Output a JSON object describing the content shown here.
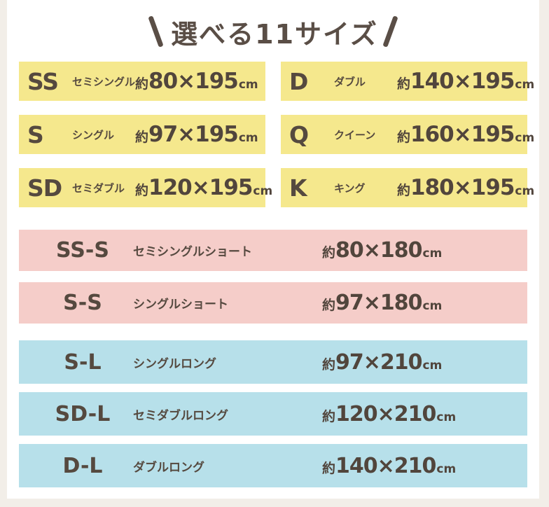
{
  "title": "選べる11サイズ",
  "colors": {
    "background": "#f2eee8",
    "panel": "#ffffff",
    "standard_row": "#f5e88d",
    "short_row": "#f5cdc9",
    "long_row": "#b7e0ea",
    "text": "#55493f"
  },
  "groups": {
    "standard": {
      "items": [
        {
          "code": "SS",
          "kana": "セミシングル",
          "prefix": "約",
          "size": "80×195",
          "unit": "cm"
        },
        {
          "code": "S",
          "kana": "シングル",
          "prefix": "約",
          "size": "97×195",
          "unit": "cm"
        },
        {
          "code": "SD",
          "kana": "セミダブル",
          "prefix": "約",
          "size": "120×195",
          "unit": "cm"
        },
        {
          "code": "D",
          "kana": "ダブル",
          "prefix": "約",
          "size": "140×195",
          "unit": "cm"
        },
        {
          "code": "Q",
          "kana": "クイーン",
          "prefix": "約",
          "size": "160×195",
          "unit": "cm"
        },
        {
          "code": "K",
          "kana": "キング",
          "prefix": "約",
          "size": "180×195",
          "unit": "cm"
        }
      ]
    },
    "short": {
      "items": [
        {
          "code": "SS-S",
          "kana": "セミシングルショート",
          "prefix": "約",
          "size": "80×180",
          "unit": "cm"
        },
        {
          "code": "S-S",
          "kana": "シングルショート",
          "prefix": "約",
          "size": "97×180",
          "unit": "cm"
        }
      ]
    },
    "long": {
      "items": [
        {
          "code": "S-L",
          "kana": "シングルロング",
          "prefix": "約",
          "size": "97×210",
          "unit": "cm"
        },
        {
          "code": "SD-L",
          "kana": "セミダブルロング",
          "prefix": "約",
          "size": "120×210",
          "unit": "cm"
        },
        {
          "code": "D-L",
          "kana": "ダブルロング",
          "prefix": "約",
          "size": "140×210",
          "unit": "cm"
        }
      ]
    }
  },
  "chart_data": {
    "type": "table",
    "title": "選べる11サイズ",
    "columns": [
      "code",
      "name",
      "size"
    ],
    "rows": [
      [
        "SS",
        "セミシングル",
        "約80×195cm"
      ],
      [
        "S",
        "シングル",
        "約97×195cm"
      ],
      [
        "SD",
        "セミダブル",
        "約120×195cm"
      ],
      [
        "D",
        "ダブル",
        "約140×195cm"
      ],
      [
        "Q",
        "クイーン",
        "約160×195cm"
      ],
      [
        "K",
        "キング",
        "約180×195cm"
      ],
      [
        "SS-S",
        "セミシングルショート",
        "約80×180cm"
      ],
      [
        "S-S",
        "シングルショート",
        "約97×180cm"
      ],
      [
        "S-L",
        "シングルロング",
        "約97×210cm"
      ],
      [
        "SD-L",
        "セミダブルロング",
        "約120×210cm"
      ],
      [
        "D-L",
        "ダブルロング",
        "約140×210cm"
      ]
    ]
  }
}
